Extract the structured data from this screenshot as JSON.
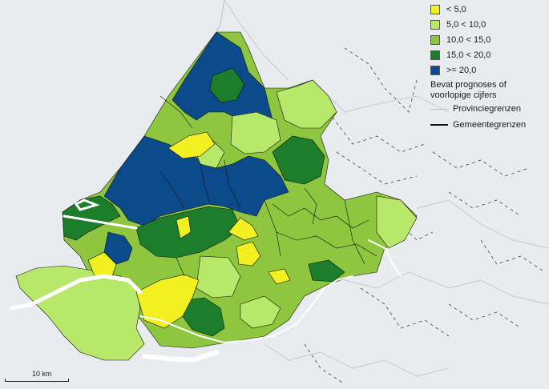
{
  "colors": {
    "background": "#e9ecef",
    "class_lt5": "#f2f021",
    "class_5_10": "#b8e86a",
    "class_10_15": "#8ec63f",
    "class_15_20": "#1c7d2a",
    "class_ge20": "#0b4b8c",
    "water": "#ffffff",
    "province_border": "#b9bfc5",
    "municipality_border": "#111111"
  },
  "legend": {
    "classes": [
      {
        "label": "< 5,0",
        "color": "#f2f021"
      },
      {
        "label": "5,0 < 10,0",
        "color": "#b8e86a"
      },
      {
        "label": "10,0 < 15,0",
        "color": "#8ec63f"
      },
      {
        "label": "15,0 < 20,0",
        "color": "#1c7d2a"
      },
      {
        "label": ">= 20,0",
        "color": "#0b4b8c"
      }
    ],
    "note": "Bevat prognoses of voorlopige cijfers",
    "province_borders": "Provinciegrenzen",
    "municipality_borders": "Gemeentegrenzen"
  },
  "scale_bar": {
    "label": "10 km"
  }
}
